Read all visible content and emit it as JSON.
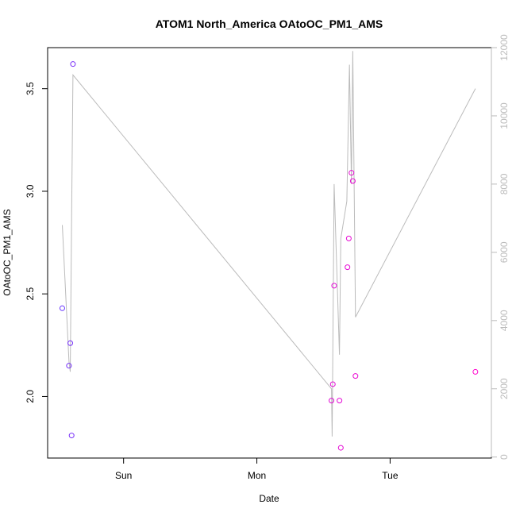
{
  "chart_data": {
    "type": "scatter",
    "title": "ATOM1 North_America OAtoOC_PM1_AMS",
    "xlabel": "Date",
    "ylabel": "OAtoOC_PM1_AMS",
    "x_ticks": [
      {
        "label": "Sun",
        "value": 1.0
      },
      {
        "label": "Mon",
        "value": 2.0
      },
      {
        "label": "Tue",
        "value": 3.0
      }
    ],
    "xlim": [
      0.43,
      3.76
    ],
    "ylim": [
      1.7,
      3.7
    ],
    "y_ticks": [
      "2.0",
      "2.5",
      "3.0",
      "3.5"
    ],
    "y2lim": [
      -30,
      12000
    ],
    "y2_ticks": [
      "0",
      "2000",
      "4000",
      "6000",
      "8000",
      "10000",
      "12000"
    ],
    "grid": false,
    "colors": {
      "line": "#bbbbbb",
      "point_start": "#6633ff",
      "point_end": "#ff00cc",
      "axis": "#000000",
      "axis_right": "#bbbbbb"
    },
    "series": [
      {
        "values": [
          {
            "x": 0.54,
            "y": 2.43
          },
          {
            "x": 0.59,
            "y": 2.15
          },
          {
            "x": 0.6,
            "y": 2.26
          },
          {
            "x": 0.61,
            "y": 1.81
          },
          {
            "x": 0.62,
            "y": 3.62
          },
          {
            "x": 2.56,
            "y": 1.98
          },
          {
            "x": 2.57,
            "y": 2.06
          },
          {
            "x": 2.58,
            "y": 2.54
          },
          {
            "x": 2.62,
            "y": 1.98
          },
          {
            "x": 2.63,
            "y": 1.75
          },
          {
            "x": 2.68,
            "y": 2.63
          },
          {
            "x": 2.69,
            "y": 2.77
          },
          {
            "x": 2.71,
            "y": 3.09
          },
          {
            "x": 2.72,
            "y": 3.05
          },
          {
            "x": 2.74,
            "y": 2.1
          },
          {
            "x": 3.64,
            "y": 2.12
          }
        ]
      },
      {
        "axis": "right",
        "values": [
          {
            "x": 0.54,
            "y": 6800
          },
          {
            "x": 0.59,
            "y": 2800
          },
          {
            "x": 0.6,
            "y": 2500
          },
          {
            "x": 0.61,
            "y": 7000
          },
          {
            "x": 0.62,
            "y": 11200
          },
          {
            "x": 2.56,
            "y": 2000
          },
          {
            "x": 2.565,
            "y": 600
          },
          {
            "x": 2.58,
            "y": 8000
          },
          {
            "x": 2.62,
            "y": 3000
          },
          {
            "x": 2.63,
            "y": 6400
          },
          {
            "x": 2.675,
            "y": 7500
          },
          {
            "x": 2.695,
            "y": 11500
          },
          {
            "x": 2.71,
            "y": 8000
          },
          {
            "x": 2.72,
            "y": 11900
          },
          {
            "x": 2.74,
            "y": 4100
          },
          {
            "x": 3.64,
            "y": 10800
          }
        ]
      }
    ]
  }
}
